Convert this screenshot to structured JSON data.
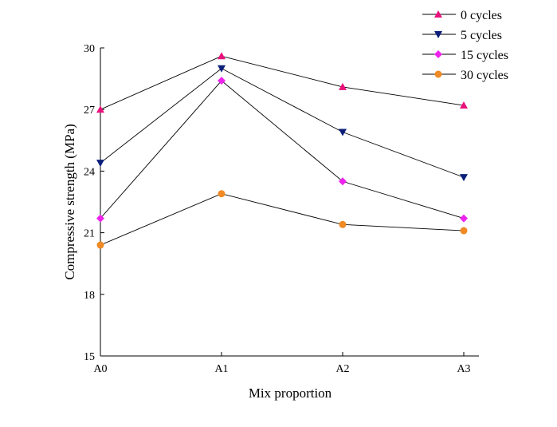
{
  "chart_data": {
    "type": "line",
    "title": "",
    "xlabel": "Mix proportion",
    "ylabel": "Compressive strength (MPa)",
    "categories": [
      "A0",
      "A1",
      "A2",
      "A3"
    ],
    "ylim": [
      15,
      30
    ],
    "yticks": [
      15,
      18,
      21,
      24,
      27,
      30
    ],
    "grid": false,
    "legend_position": "top-right",
    "series": [
      {
        "name": "0  cycles",
        "marker": "triangle-up",
        "color": "#e8127c",
        "values": [
          27.0,
          29.6,
          28.1,
          27.2
        ]
      },
      {
        "name": "5  cycles",
        "marker": "triangle-down",
        "color": "#0b1f7a",
        "values": [
          24.4,
          29.0,
          25.9,
          23.7
        ]
      },
      {
        "name": "15 cycles",
        "marker": "diamond",
        "color": "#ee22ee",
        "values": [
          21.7,
          28.4,
          23.5,
          21.7
        ]
      },
      {
        "name": "30  cycles",
        "marker": "circle",
        "color": "#f08a24",
        "values": [
          20.4,
          22.9,
          21.4,
          21.1
        ]
      }
    ]
  }
}
